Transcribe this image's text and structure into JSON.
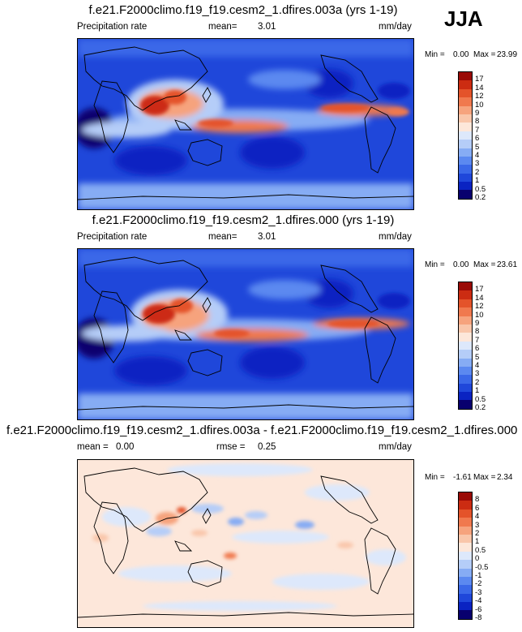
{
  "season": "JJA",
  "color_scales": {
    "precip": [
      "#08006e",
      "#0a23c2",
      "#1f47da",
      "#3a68e8",
      "#5b89f0",
      "#86acf4",
      "#b5cdf8",
      "#dde8fb",
      "#fde7da",
      "#f9c6aa",
      "#f6a37d",
      "#f0794e",
      "#e4532a",
      "#cc2c12",
      "#9a0a06"
    ],
    "diff": [
      "#08006e",
      "#0a23c2",
      "#1f47da",
      "#3a68e8",
      "#5b89f0",
      "#86acf4",
      "#b5cdf8",
      "#dde8fb",
      "#fde7da",
      "#f9c6aa",
      "#f6a37d",
      "#f0794e",
      "#e4532a",
      "#cc2c12",
      "#9a0a06"
    ]
  },
  "panels": [
    {
      "id": "test",
      "title": "f.e21.F2000climo.f19_f19.cesm2_1.dfires.003a (yrs 1-19)",
      "variable": "Precipitation rate",
      "stat_label": "mean=",
      "stat_value": "3.01",
      "units": "mm/day",
      "min_label": "Min =",
      "min_value": "0.00",
      "max_label": "Max =",
      "max_value": "23.99",
      "colorbar_labels": [
        "17",
        "14",
        "12",
        "10",
        "9",
        "8",
        "7",
        "6",
        "5",
        "4",
        "3",
        "2",
        "1",
        "0.5",
        "0.2"
      ]
    },
    {
      "id": "control",
      "title": "f.e21.F2000climo.f19_f19.cesm2_1.dfires.000 (yrs 1-19)",
      "variable": "Precipitation rate",
      "stat_label": "mean=",
      "stat_value": "3.01",
      "units": "mm/day",
      "min_label": "Min =",
      "min_value": "0.00",
      "max_label": "Max =",
      "max_value": "23.61",
      "colorbar_labels": [
        "17",
        "14",
        "12",
        "10",
        "9",
        "8",
        "7",
        "6",
        "5",
        "4",
        "3",
        "2",
        "1",
        "0.5",
        "0.2"
      ]
    },
    {
      "id": "difference",
      "title": "f.e21.F2000climo.f19_f19.cesm2_1.dfires.003a - f.e21.F2000climo.f19_f19.cesm2_1.dfires.000",
      "mean_label": "mean =",
      "mean_value": "0.00",
      "stat_label": "rmse =",
      "stat_value": "0.25",
      "units": "mm/day",
      "min_label": "Min =",
      "min_value": "-1.61",
      "max_label": "Max =",
      "max_value": "2.34",
      "colorbar_labels": [
        "8",
        "6",
        "4",
        "3",
        "2",
        "1",
        "0.5",
        "0",
        "-0.5",
        "-1",
        "-2",
        "-3",
        "-4",
        "-6",
        "-8"
      ]
    }
  ]
}
